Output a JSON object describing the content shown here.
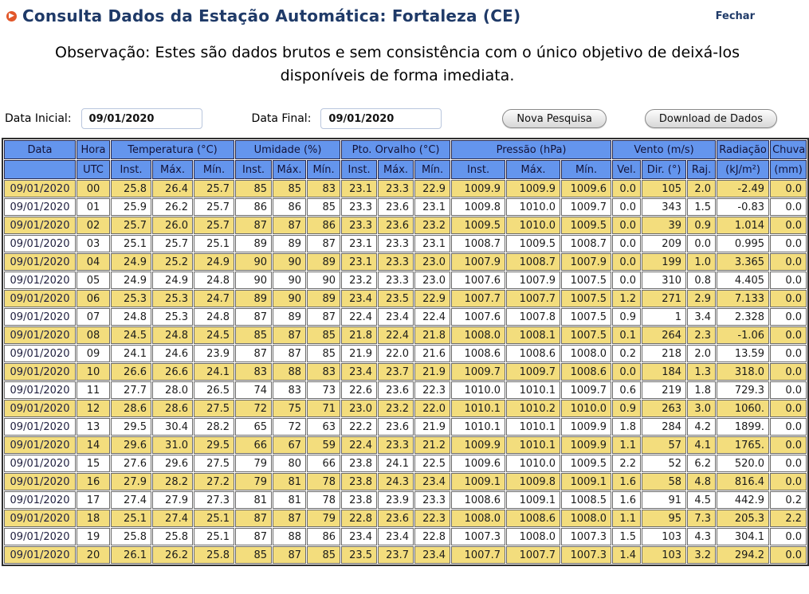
{
  "header": {
    "title": "Consulta Dados da Estação Automática: Fortaleza (CE)",
    "close_label": "Fechar",
    "bullet_icon": "arrow-bullet-icon",
    "title_color": "#1f3a68",
    "accent_orange": "#e2572a"
  },
  "observation": "Observação: Estes são dados brutos e sem consistência com o único objetivo de deixá-los disponíveis de forma imediata.",
  "form": {
    "start_label": "Data Inicial:",
    "start_value": "09/01/2020",
    "end_label": "Data Final:",
    "end_value": "09/01/2020",
    "new_search_label": "Nova Pesquisa",
    "download_label": "Download de Dados"
  },
  "table": {
    "colors": {
      "header_bg": "#6495ed",
      "row_odd_bg": "#f3dd7d",
      "row_even_bg": "#ffffff"
    },
    "header_groups": [
      {
        "label": "Data",
        "colspan": 1
      },
      {
        "label": "Hora",
        "colspan": 1
      },
      {
        "label": "Temperatura (°C)",
        "colspan": 3
      },
      {
        "label": "Umidade (%)",
        "colspan": 3
      },
      {
        "label": "Pto. Orvalho (°C)",
        "colspan": 3
      },
      {
        "label": "Pressão (hPa)",
        "colspan": 3
      },
      {
        "label": "Vento (m/s)",
        "colspan": 3
      },
      {
        "label": "Radiação",
        "colspan": 1
      },
      {
        "label": "Chuva",
        "colspan": 1
      }
    ],
    "header_sub": [
      "",
      "UTC",
      "Inst.",
      "Máx.",
      "Mín.",
      "Inst.",
      "Máx.",
      "Mín.",
      "Inst.",
      "Máx.",
      "Mín.",
      "Inst.",
      "Máx.",
      "Mín.",
      "Vel.",
      "Dir. (°)",
      "Raj.",
      "(kJ/m²)",
      "(mm)"
    ],
    "rows": [
      [
        "09/01/2020",
        "00",
        "25.8",
        "26.4",
        "25.7",
        "85",
        "85",
        "83",
        "23.1",
        "23.3",
        "22.9",
        "1009.9",
        "1009.9",
        "1009.6",
        "0.0",
        "105",
        "2.0",
        "-2.49",
        "0.0"
      ],
      [
        "09/01/2020",
        "01",
        "25.9",
        "26.2",
        "25.7",
        "86",
        "86",
        "85",
        "23.3",
        "23.6",
        "23.1",
        "1009.8",
        "1010.0",
        "1009.7",
        "0.0",
        "343",
        "1.5",
        "-0.83",
        "0.0"
      ],
      [
        "09/01/2020",
        "02",
        "25.7",
        "26.0",
        "25.7",
        "87",
        "87",
        "86",
        "23.3",
        "23.6",
        "23.2",
        "1009.5",
        "1010.0",
        "1009.5",
        "0.0",
        "39",
        "0.9",
        "1.014",
        "0.0"
      ],
      [
        "09/01/2020",
        "03",
        "25.1",
        "25.7",
        "25.1",
        "89",
        "89",
        "87",
        "23.1",
        "23.3",
        "23.1",
        "1008.7",
        "1009.5",
        "1008.7",
        "0.0",
        "209",
        "0.0",
        "0.995",
        "0.0"
      ],
      [
        "09/01/2020",
        "04",
        "24.9",
        "25.2",
        "24.9",
        "90",
        "90",
        "89",
        "23.1",
        "23.3",
        "23.0",
        "1007.9",
        "1008.7",
        "1007.9",
        "0.0",
        "199",
        "1.0",
        "3.365",
        "0.0"
      ],
      [
        "09/01/2020",
        "05",
        "24.9",
        "24.9",
        "24.8",
        "90",
        "90",
        "90",
        "23.2",
        "23.3",
        "23.0",
        "1007.6",
        "1007.9",
        "1007.5",
        "0.0",
        "310",
        "0.8",
        "4.405",
        "0.0"
      ],
      [
        "09/01/2020",
        "06",
        "25.3",
        "25.3",
        "24.7",
        "89",
        "90",
        "89",
        "23.4",
        "23.5",
        "22.9",
        "1007.7",
        "1007.7",
        "1007.5",
        "1.2",
        "271",
        "2.9",
        "7.133",
        "0.0"
      ],
      [
        "09/01/2020",
        "07",
        "24.8",
        "25.3",
        "24.8",
        "87",
        "89",
        "87",
        "22.4",
        "23.4",
        "22.4",
        "1007.6",
        "1007.8",
        "1007.5",
        "0.9",
        "1",
        "3.4",
        "2.328",
        "0.0"
      ],
      [
        "09/01/2020",
        "08",
        "24.5",
        "24.8",
        "24.5",
        "85",
        "87",
        "85",
        "21.8",
        "22.4",
        "21.8",
        "1008.0",
        "1008.1",
        "1007.5",
        "0.1",
        "264",
        "2.3",
        "-1.06",
        "0.0"
      ],
      [
        "09/01/2020",
        "09",
        "24.1",
        "24.6",
        "23.9",
        "87",
        "87",
        "85",
        "21.9",
        "22.0",
        "21.6",
        "1008.6",
        "1008.6",
        "1008.0",
        "0.2",
        "218",
        "2.0",
        "13.59",
        "0.0"
      ],
      [
        "09/01/2020",
        "10",
        "26.6",
        "26.6",
        "24.1",
        "83",
        "88",
        "83",
        "23.4",
        "23.7",
        "21.9",
        "1009.7",
        "1009.7",
        "1008.6",
        "0.0",
        "184",
        "1.3",
        "318.0",
        "0.0"
      ],
      [
        "09/01/2020",
        "11",
        "27.7",
        "28.0",
        "26.5",
        "74",
        "83",
        "73",
        "22.6",
        "23.6",
        "22.3",
        "1010.0",
        "1010.1",
        "1009.7",
        "0.6",
        "219",
        "1.8",
        "729.3",
        "0.0"
      ],
      [
        "09/01/2020",
        "12",
        "28.6",
        "28.6",
        "27.5",
        "72",
        "75",
        "71",
        "23.0",
        "23.2",
        "22.0",
        "1010.1",
        "1010.2",
        "1010.0",
        "0.9",
        "263",
        "3.0",
        "1060.",
        "0.0"
      ],
      [
        "09/01/2020",
        "13",
        "29.5",
        "30.4",
        "28.2",
        "65",
        "72",
        "63",
        "22.2",
        "23.6",
        "21.9",
        "1010.1",
        "1010.1",
        "1009.9",
        "1.8",
        "284",
        "4.2",
        "1899.",
        "0.0"
      ],
      [
        "09/01/2020",
        "14",
        "29.6",
        "31.0",
        "29.5",
        "66",
        "67",
        "59",
        "22.4",
        "23.3",
        "21.2",
        "1009.9",
        "1010.1",
        "1009.9",
        "1.1",
        "57",
        "4.1",
        "1765.",
        "0.0"
      ],
      [
        "09/01/2020",
        "15",
        "27.6",
        "29.6",
        "27.5",
        "79",
        "80",
        "66",
        "23.8",
        "24.1",
        "22.5",
        "1009.6",
        "1010.0",
        "1009.5",
        "2.2",
        "52",
        "6.2",
        "520.0",
        "0.0"
      ],
      [
        "09/01/2020",
        "16",
        "27.9",
        "28.2",
        "27.2",
        "79",
        "81",
        "78",
        "23.8",
        "24.3",
        "23.4",
        "1009.1",
        "1009.8",
        "1009.1",
        "1.6",
        "58",
        "4.8",
        "816.4",
        "0.0"
      ],
      [
        "09/01/2020",
        "17",
        "27.4",
        "27.9",
        "27.3",
        "81",
        "81",
        "78",
        "23.8",
        "23.9",
        "23.3",
        "1008.6",
        "1009.1",
        "1008.5",
        "1.6",
        "91",
        "4.5",
        "442.9",
        "0.2"
      ],
      [
        "09/01/2020",
        "18",
        "25.1",
        "27.4",
        "25.1",
        "87",
        "87",
        "79",
        "22.8",
        "23.6",
        "22.3",
        "1008.0",
        "1008.6",
        "1008.0",
        "1.1",
        "95",
        "7.3",
        "205.3",
        "2.2"
      ],
      [
        "09/01/2020",
        "19",
        "25.8",
        "25.8",
        "25.1",
        "87",
        "88",
        "86",
        "23.4",
        "23.4",
        "22.8",
        "1007.3",
        "1008.0",
        "1007.3",
        "1.5",
        "103",
        "4.3",
        "304.1",
        "0.0"
      ],
      [
        "09/01/2020",
        "20",
        "26.1",
        "26.2",
        "25.8",
        "85",
        "87",
        "85",
        "23.5",
        "23.7",
        "23.4",
        "1007.7",
        "1007.7",
        "1007.3",
        "1.4",
        "103",
        "3.2",
        "294.2",
        "0.0"
      ]
    ]
  }
}
